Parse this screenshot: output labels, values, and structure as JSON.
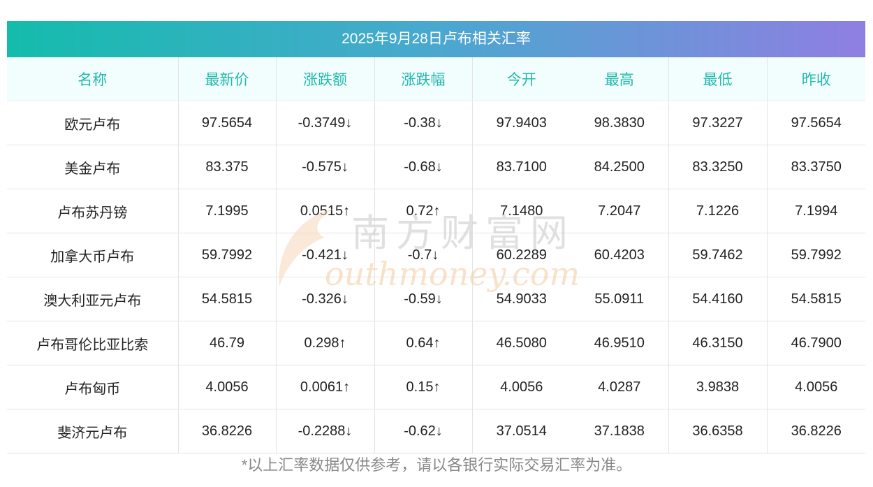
{
  "title": "2025年9月28日卢布相关汇率",
  "columns": [
    "名称",
    "最新价",
    "涨跌额",
    "涨跌幅",
    "今开",
    "最高",
    "最低",
    "昨收"
  ],
  "rows": [
    {
      "name": "欧元卢布",
      "latest": "97.5654",
      "change": "-0.3749↓",
      "pct": "-0.38↓",
      "open": "97.9403",
      "high": "98.3830",
      "low": "97.3227",
      "prev": "97.5654",
      "trend": "down"
    },
    {
      "name": "美金卢布",
      "latest": "83.375",
      "change": "-0.575↓",
      "pct": "-0.68↓",
      "open": "83.7100",
      "high": "84.2500",
      "low": "83.3250",
      "prev": "83.3750",
      "trend": "down"
    },
    {
      "name": "卢布苏丹镑",
      "latest": "7.1995",
      "change": "0.0515↑",
      "pct": "0.72↑",
      "open": "7.1480",
      "high": "7.2047",
      "low": "7.1226",
      "prev": "7.1994",
      "trend": "up"
    },
    {
      "name": "加拿大币卢布",
      "latest": "59.7992",
      "change": "-0.421↓",
      "pct": "-0.7↓",
      "open": "60.2289",
      "high": "60.4203",
      "low": "59.7462",
      "prev": "59.7992",
      "trend": "down"
    },
    {
      "name": "澳大利亚元卢布",
      "latest": "54.5815",
      "change": "-0.326↓",
      "pct": "-0.59↓",
      "open": "54.9033",
      "high": "55.0911",
      "low": "54.4160",
      "prev": "54.5815",
      "trend": "down"
    },
    {
      "name": "卢布哥伦比亚比索",
      "latest": "46.79",
      "change": "0.298↑",
      "pct": "0.64↑",
      "open": "46.5080",
      "high": "46.9510",
      "low": "46.3150",
      "prev": "46.7900",
      "trend": "up"
    },
    {
      "name": "卢布匈币",
      "latest": "4.0056",
      "change": "0.0061↑",
      "pct": "0.15↑",
      "open": "4.0056",
      "high": "4.0287",
      "low": "3.9838",
      "prev": "4.0056",
      "trend": "up"
    },
    {
      "name": "斐济元卢布",
      "latest": "36.8226",
      "change": "-0.2288↓",
      "pct": "-0.62↓",
      "open": "37.0514",
      "high": "37.1838",
      "low": "36.6358",
      "prev": "36.8226",
      "trend": "down"
    }
  ],
  "watermark": {
    "cn": "南方财富网",
    "en": "outhmoney.com"
  },
  "footnote": "*以上汇率数据仅供参考，请以各银行实际交易汇率为准。",
  "colors": {
    "up": "#ee1111",
    "down": "#1a8a1a",
    "header_text": "#22b8ac",
    "gradient_start": "#14bcac",
    "gradient_end": "#8f7fe2"
  }
}
